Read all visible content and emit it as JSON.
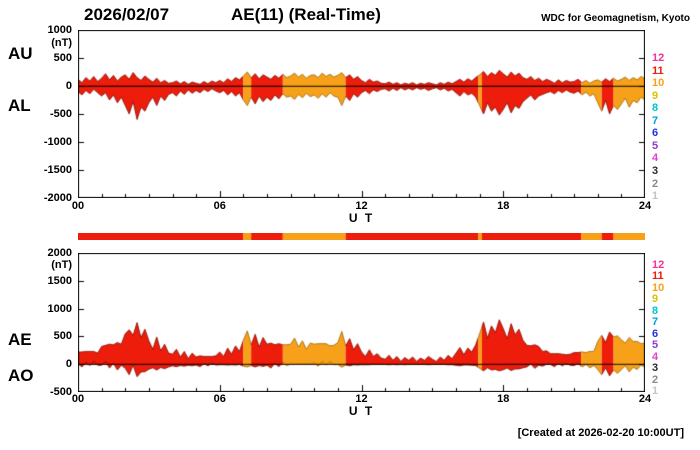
{
  "header": {
    "date": "2026/02/07",
    "title": "AE(11) (Real-Time)",
    "source": "WDC for Geomagnetism, Kyoto"
  },
  "footer": {
    "created": "[Created at 2026-02-20 10:00UT]"
  },
  "colors": {
    "red": "#ed1c0b",
    "orange": "#f7a11a",
    "outline_11": "#7e0d00",
    "outline_10": "#9c6400"
  },
  "legend": {
    "meaning": "number of stations",
    "items": [
      {
        "label": "12",
        "color": "#f2319b"
      },
      {
        "label": "11",
        "color": "#ed1c0b"
      },
      {
        "label": "10",
        "color": "#f7a11a"
      },
      {
        "label": "9",
        "color": "#d9c400"
      },
      {
        "label": "8",
        "color": "#00c5cf"
      },
      {
        "label": "7",
        "color": "#00a1e4"
      },
      {
        "label": "6",
        "color": "#2333e0"
      },
      {
        "label": "5",
        "color": "#8a3fd1"
      },
      {
        "label": "4",
        "color": "#e43fd1"
      },
      {
        "label": "3",
        "color": "#2b2b2b"
      },
      {
        "label": "2",
        "color": "#8a8a8a"
      },
      {
        "label": "1",
        "color": "#c4c4c4"
      }
    ]
  },
  "station_segments": [
    {
      "start": 0,
      "end": 7.0,
      "stations": 11
    },
    {
      "start": 7.0,
      "end": 7.33,
      "stations": 10
    },
    {
      "start": 7.33,
      "end": 8.67,
      "stations": 11
    },
    {
      "start": 8.67,
      "end": 11.33,
      "stations": 10
    },
    {
      "start": 11.33,
      "end": 16.95,
      "stations": 11
    },
    {
      "start": 16.95,
      "end": 17.1,
      "stations": 10
    },
    {
      "start": 17.1,
      "end": 21.3,
      "stations": 11
    },
    {
      "start": 21.3,
      "end": 22.17,
      "stations": 10
    },
    {
      "start": 22.17,
      "end": 22.67,
      "stations": 11
    },
    {
      "start": 22.67,
      "end": 24,
      "stations": 10
    }
  ],
  "chart_data": [
    {
      "type": "area",
      "title": "AU and AL indices",
      "ylabel": "(nT)",
      "xlabel": "U T",
      "ylim": [
        -2000,
        1000
      ],
      "yticks": [
        1000,
        500,
        0,
        -500,
        -1000,
        -1500,
        -2000
      ],
      "xlim": [
        0,
        24
      ],
      "xticks": [
        "00",
        "06",
        "12",
        "18",
        "24"
      ],
      "x_minutes_per_point": 10,
      "series": [
        {
          "name": "AU",
          "values": [
            120,
            60,
            150,
            90,
            170,
            80,
            140,
            220,
            110,
            190,
            90,
            160,
            200,
            120,
            240,
            150,
            100,
            180,
            120,
            70,
            140,
            60,
            100,
            50,
            60,
            90,
            40,
            80,
            30,
            70,
            50,
            30,
            80,
            40,
            90,
            60,
            100,
            60,
            130,
            80,
            150,
            110,
            180,
            250,
            150,
            220,
            130,
            200,
            160,
            120,
            190,
            140,
            210,
            150,
            180,
            230,
            160,
            210,
            140,
            190,
            200,
            150,
            230,
            170,
            210,
            160,
            190,
            240,
            150,
            200,
            120,
            170,
            100,
            60,
            120,
            70,
            90,
            50,
            40,
            70,
            30,
            60,
            20,
            50,
            30,
            60,
            20,
            50,
            30,
            60,
            40,
            20,
            60,
            30,
            70,
            40,
            80,
            120,
            70,
            130,
            90,
            150,
            200,
            260,
            170,
            240,
            190,
            280,
            220,
            160,
            250,
            180,
            230,
            150,
            120,
            170,
            100,
            140,
            80,
            120,
            90,
            50,
            110,
            60,
            100,
            70,
            80,
            120,
            60,
            100,
            50,
            90,
            110,
            70,
            130,
            80,
            140,
            90,
            120,
            160,
            100,
            150,
            110,
            170,
            130
          ]
        },
        {
          "name": "AL",
          "values": [
            -100,
            -160,
            -80,
            -140,
            -60,
            -120,
            -180,
            -120,
            -250,
            -160,
            -300,
            -200,
            -350,
            -500,
            -280,
            -600,
            -380,
            -450,
            -300,
            -200,
            -350,
            -180,
            -260,
            -150,
            -120,
            -180,
            -90,
            -150,
            -70,
            -130,
            -80,
            -120,
            -60,
            -100,
            -50,
            -90,
            -120,
            -80,
            -160,
            -100,
            -180,
            -120,
            -250,
            -350,
            -200,
            -320,
            -180,
            -280,
            -200,
            -260,
            -160,
            -230,
            -140,
            -200,
            -180,
            -240,
            -150,
            -210,
            -130,
            -190,
            -160,
            -220,
            -140,
            -200,
            -120,
            -180,
            -200,
            -350,
            -180,
            -260,
            -140,
            -200,
            -120,
            -80,
            -140,
            -70,
            -100,
            -60,
            -50,
            -90,
            -40,
            -80,
            -30,
            -70,
            -40,
            -70,
            -30,
            -60,
            -40,
            -80,
            -50,
            -30,
            -70,
            -40,
            -90,
            -60,
            -120,
            -180,
            -100,
            -160,
            -130,
            -200,
            -350,
            -500,
            -300,
            -450,
            -380,
            -520,
            -420,
            -300,
            -480,
            -350,
            -400,
            -280,
            -220,
            -160,
            -250,
            -180,
            -150,
            -120,
            -100,
            -140,
            -80,
            -120,
            -70,
            -110,
            -130,
            -90,
            -160,
            -110,
            -180,
            -140,
            -300,
            -450,
            -260,
            -500,
            -350,
            -420,
            -320,
            -220,
            -380,
            -260,
            -300,
            -200,
            -250
          ]
        }
      ]
    },
    {
      "type": "area",
      "title": "AE and AO indices",
      "ylabel": "(nT)",
      "xlabel": "U T",
      "ylim": [
        -500,
        2000
      ],
      "yticks": [
        2000,
        1500,
        1000,
        500,
        0,
        -500
      ],
      "xlim": [
        0,
        24
      ],
      "xticks": [
        "00",
        "06",
        "12",
        "18",
        "24"
      ],
      "x_minutes_per_point": 10,
      "series": [
        {
          "name": "AE",
          "values": [
            220,
            220,
            230,
            230,
            230,
            200,
            320,
            340,
            360,
            350,
            390,
            360,
            550,
            620,
            520,
            750,
            480,
            630,
            420,
            270,
            490,
            240,
            360,
            200,
            180,
            270,
            130,
            230,
            100,
            200,
            130,
            150,
            140,
            140,
            140,
            150,
            220,
            140,
            290,
            180,
            330,
            230,
            430,
            600,
            350,
            540,
            310,
            480,
            360,
            380,
            350,
            370,
            350,
            350,
            360,
            470,
            310,
            420,
            270,
            380,
            360,
            370,
            370,
            370,
            330,
            340,
            390,
            590,
            330,
            460,
            260,
            370,
            220,
            140,
            260,
            140,
            190,
            110,
            90,
            160,
            70,
            140,
            50,
            120,
            70,
            130,
            50,
            110,
            70,
            140,
            90,
            50,
            130,
            70,
            160,
            100,
            200,
            300,
            170,
            290,
            220,
            350,
            550,
            760,
            470,
            690,
            570,
            800,
            640,
            460,
            730,
            530,
            630,
            430,
            340,
            330,
            350,
            320,
            230,
            240,
            190,
            190,
            190,
            180,
            170,
            180,
            210,
            210,
            220,
            210,
            230,
            230,
            410,
            520,
            390,
            580,
            490,
            510,
            440,
            380,
            480,
            410,
            410,
            370,
            380
          ]
        },
        {
          "name": "AO",
          "values": [
            10,
            -50,
            35,
            -25,
            55,
            -20,
            -20,
            50,
            -70,
            15,
            -105,
            -20,
            -75,
            -190,
            -20,
            -225,
            -140,
            -135,
            -90,
            -65,
            -105,
            -60,
            -80,
            -50,
            -30,
            -45,
            -25,
            -35,
            -20,
            -30,
            -15,
            -45,
            10,
            -30,
            20,
            -15,
            -10,
            -10,
            -15,
            -10,
            -15,
            -5,
            -35,
            -50,
            -25,
            -50,
            -25,
            -40,
            -20,
            -70,
            15,
            -45,
            35,
            -25,
            0,
            -5,
            5,
            0,
            5,
            0,
            20,
            -35,
            45,
            -15,
            45,
            -10,
            -5,
            -55,
            -15,
            -30,
            -10,
            -15,
            -10,
            -10,
            -10,
            0,
            -5,
            -5,
            -5,
            -10,
            -5,
            -10,
            -5,
            -10,
            -5,
            -5,
            -5,
            -5,
            -5,
            -10,
            -5,
            -5,
            -5,
            -5,
            -10,
            -10,
            -20,
            -30,
            -15,
            -15,
            -20,
            -25,
            -75,
            -120,
            -65,
            -105,
            -95,
            -120,
            -100,
            -70,
            -115,
            -85,
            -85,
            -65,
            -50,
            5,
            -75,
            -20,
            -35,
            0,
            -5,
            -45,
            15,
            -30,
            15,
            -20,
            -25,
            15,
            -50,
            -5,
            -65,
            -25,
            -95,
            -190,
            -65,
            -210,
            -105,
            -165,
            -100,
            -30,
            -140,
            -55,
            -95,
            -15,
            -60
          ]
        }
      ]
    }
  ]
}
